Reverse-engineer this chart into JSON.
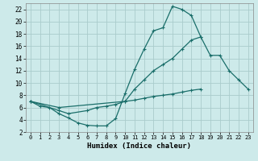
{
  "xlabel": "Humidex (Indice chaleur)",
  "bg_color": "#cdeaea",
  "grid_color": "#aacccc",
  "line_color": "#1a6e6a",
  "xlim": [
    -0.5,
    23.5
  ],
  "ylim": [
    2,
    23
  ],
  "xticks": [
    0,
    1,
    2,
    3,
    4,
    5,
    6,
    7,
    8,
    9,
    10,
    11,
    12,
    13,
    14,
    15,
    16,
    17,
    18,
    19,
    20,
    21,
    22,
    23
  ],
  "yticks": [
    2,
    4,
    6,
    8,
    10,
    12,
    14,
    16,
    18,
    20,
    22
  ],
  "line1_x": [
    0,
    1,
    2,
    3,
    4,
    5,
    6,
    7,
    8,
    9,
    10,
    11,
    12,
    13,
    14,
    15,
    16,
    17,
    18,
    19,
    20,
    21,
    22,
    23
  ],
  "line1_y": [
    7.0,
    6.2,
    6.0,
    5.0,
    4.3,
    3.5,
    3.1,
    3.0,
    3.0,
    4.2,
    8.3,
    12.2,
    15.5,
    18.5,
    19.0,
    22.5,
    22.0,
    21.0,
    17.5,
    null,
    null,
    null,
    null,
    null
  ],
  "line2_x": [
    0,
    1,
    2,
    3,
    4,
    5,
    6,
    7,
    8,
    9,
    10,
    11,
    12,
    13,
    14,
    15,
    16,
    17,
    18,
    19,
    20,
    21,
    22,
    23
  ],
  "line2_y": [
    7.0,
    null,
    null,
    6.0,
    null,
    null,
    null,
    null,
    null,
    null,
    7.0,
    9.0,
    10.5,
    12.0,
    13.0,
    14.0,
    15.5,
    17.0,
    17.5,
    14.5,
    14.5,
    12.0,
    10.5,
    9.0
  ],
  "line3_x": [
    0,
    1,
    2,
    3,
    4,
    5,
    6,
    7,
    8,
    9,
    10,
    11,
    12,
    13,
    14,
    15,
    16,
    17,
    18,
    19,
    20,
    21,
    22,
    23
  ],
  "line3_y": [
    7.0,
    null,
    null,
    5.5,
    5.0,
    null,
    5.5,
    6.0,
    6.2,
    6.5,
    7.0,
    7.2,
    7.5,
    7.8,
    8.0,
    8.2,
    8.5,
    8.8,
    9.0,
    null,
    null,
    null,
    null,
    null
  ]
}
